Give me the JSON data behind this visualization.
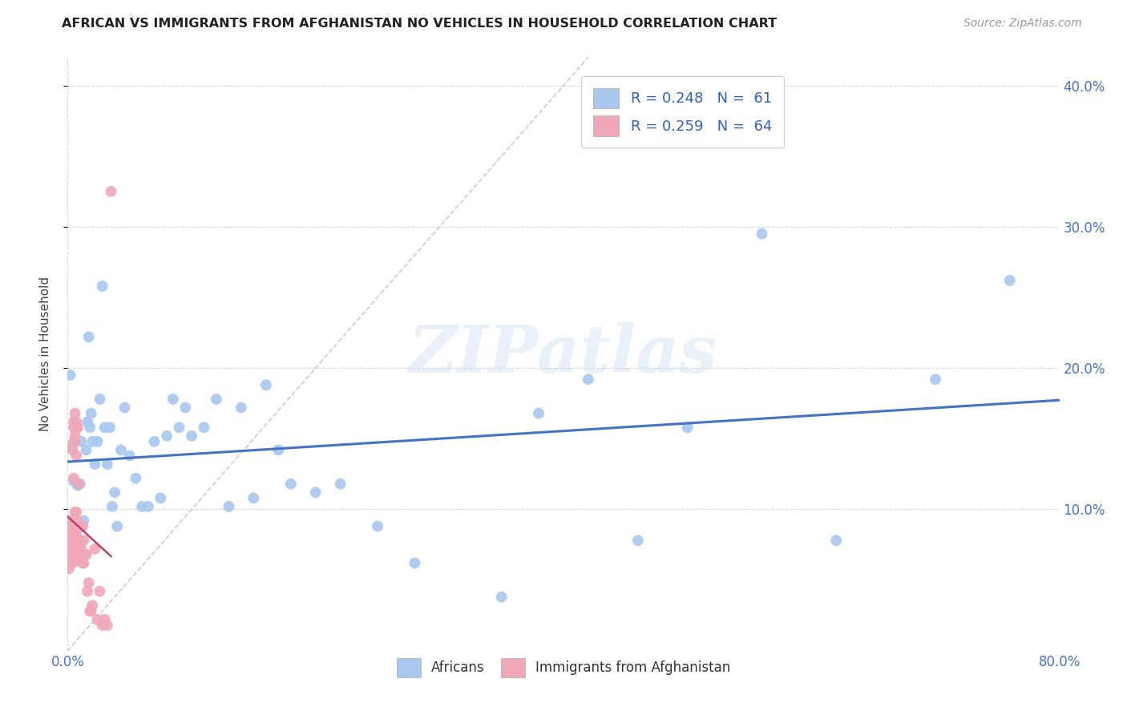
{
  "title": "AFRICAN VS IMMIGRANTS FROM AFGHANISTAN NO VEHICLES IN HOUSEHOLD CORRELATION CHART",
  "source": "Source: ZipAtlas.com",
  "ylabel": "No Vehicles in Household",
  "watermark": "ZIPatlas",
  "legend1_label": "R = 0.248   N =  61",
  "legend2_label": "R = 0.259   N =  64",
  "legend_africans": "Africans",
  "legend_afghanistan": "Immigrants from Afghanistan",
  "blue_color": "#a8c8f0",
  "pink_color": "#f0a8b8",
  "line_blue": "#4472c4",
  "line_pink": "#c04060",
  "diag_color": "#c0c0c0",
  "xlim": [
    0.0,
    0.8
  ],
  "ylim": [
    0.0,
    0.42
  ],
  "xtick_vals": [
    0.0,
    0.8
  ],
  "xtick_labels": [
    "0.0%",
    "80.0%"
  ],
  "ytick_vals": [
    0.1,
    0.2,
    0.3,
    0.4
  ],
  "ytick_labels": [
    "10.0%",
    "20.0%",
    "30.0%",
    "40.0%"
  ],
  "africans_x": [
    0.002,
    0.003,
    0.004,
    0.005,
    0.007,
    0.008,
    0.009,
    0.01,
    0.011,
    0.012,
    0.013,
    0.015,
    0.016,
    0.017,
    0.018,
    0.019,
    0.02,
    0.022,
    0.024,
    0.026,
    0.028,
    0.03,
    0.032,
    0.034,
    0.036,
    0.038,
    0.04,
    0.043,
    0.046,
    0.05,
    0.055,
    0.06,
    0.065,
    0.07,
    0.075,
    0.08,
    0.085,
    0.09,
    0.095,
    0.1,
    0.11,
    0.12,
    0.13,
    0.14,
    0.15,
    0.16,
    0.17,
    0.18,
    0.2,
    0.22,
    0.25,
    0.28,
    0.35,
    0.38,
    0.42,
    0.46,
    0.5,
    0.56,
    0.62,
    0.7,
    0.76
  ],
  "africans_y": [
    0.195,
    0.145,
    0.092,
    0.12,
    0.082,
    0.117,
    0.09,
    0.118,
    0.148,
    0.088,
    0.092,
    0.142,
    0.162,
    0.222,
    0.158,
    0.168,
    0.148,
    0.132,
    0.148,
    0.178,
    0.258,
    0.158,
    0.132,
    0.158,
    0.102,
    0.112,
    0.088,
    0.142,
    0.172,
    0.138,
    0.122,
    0.102,
    0.102,
    0.148,
    0.108,
    0.152,
    0.178,
    0.158,
    0.172,
    0.152,
    0.158,
    0.178,
    0.102,
    0.172,
    0.108,
    0.188,
    0.142,
    0.118,
    0.112,
    0.118,
    0.088,
    0.062,
    0.038,
    0.168,
    0.192,
    0.078,
    0.158,
    0.295,
    0.078,
    0.192,
    0.262
  ],
  "afghan_x": [
    0.001,
    0.001,
    0.001,
    0.001,
    0.001,
    0.002,
    0.002,
    0.002,
    0.002,
    0.002,
    0.002,
    0.003,
    0.003,
    0.003,
    0.003,
    0.003,
    0.003,
    0.004,
    0.004,
    0.004,
    0.004,
    0.005,
    0.005,
    0.005,
    0.005,
    0.006,
    0.006,
    0.006,
    0.006,
    0.006,
    0.007,
    0.007,
    0.007,
    0.007,
    0.008,
    0.008,
    0.008,
    0.008,
    0.009,
    0.009,
    0.009,
    0.01,
    0.01,
    0.01,
    0.011,
    0.011,
    0.012,
    0.012,
    0.013,
    0.013,
    0.014,
    0.015,
    0.016,
    0.017,
    0.018,
    0.019,
    0.02,
    0.022,
    0.024,
    0.026,
    0.028,
    0.03,
    0.032,
    0.035
  ],
  "afghan_y": [
    0.072,
    0.078,
    0.082,
    0.068,
    0.058,
    0.082,
    0.092,
    0.062,
    0.072,
    0.088,
    0.075,
    0.088,
    0.078,
    0.068,
    0.078,
    0.072,
    0.065,
    0.082,
    0.062,
    0.068,
    0.142,
    0.148,
    0.162,
    0.158,
    0.122,
    0.148,
    0.098,
    0.152,
    0.168,
    0.082,
    0.162,
    0.098,
    0.138,
    0.068,
    0.158,
    0.158,
    0.092,
    0.068,
    0.118,
    0.072,
    0.068,
    0.068,
    0.078,
    0.088,
    0.072,
    0.088,
    0.062,
    0.088,
    0.062,
    0.078,
    0.068,
    0.068,
    0.042,
    0.048,
    0.028,
    0.028,
    0.032,
    0.072,
    0.022,
    0.042,
    0.018,
    0.022,
    0.018,
    0.325
  ]
}
